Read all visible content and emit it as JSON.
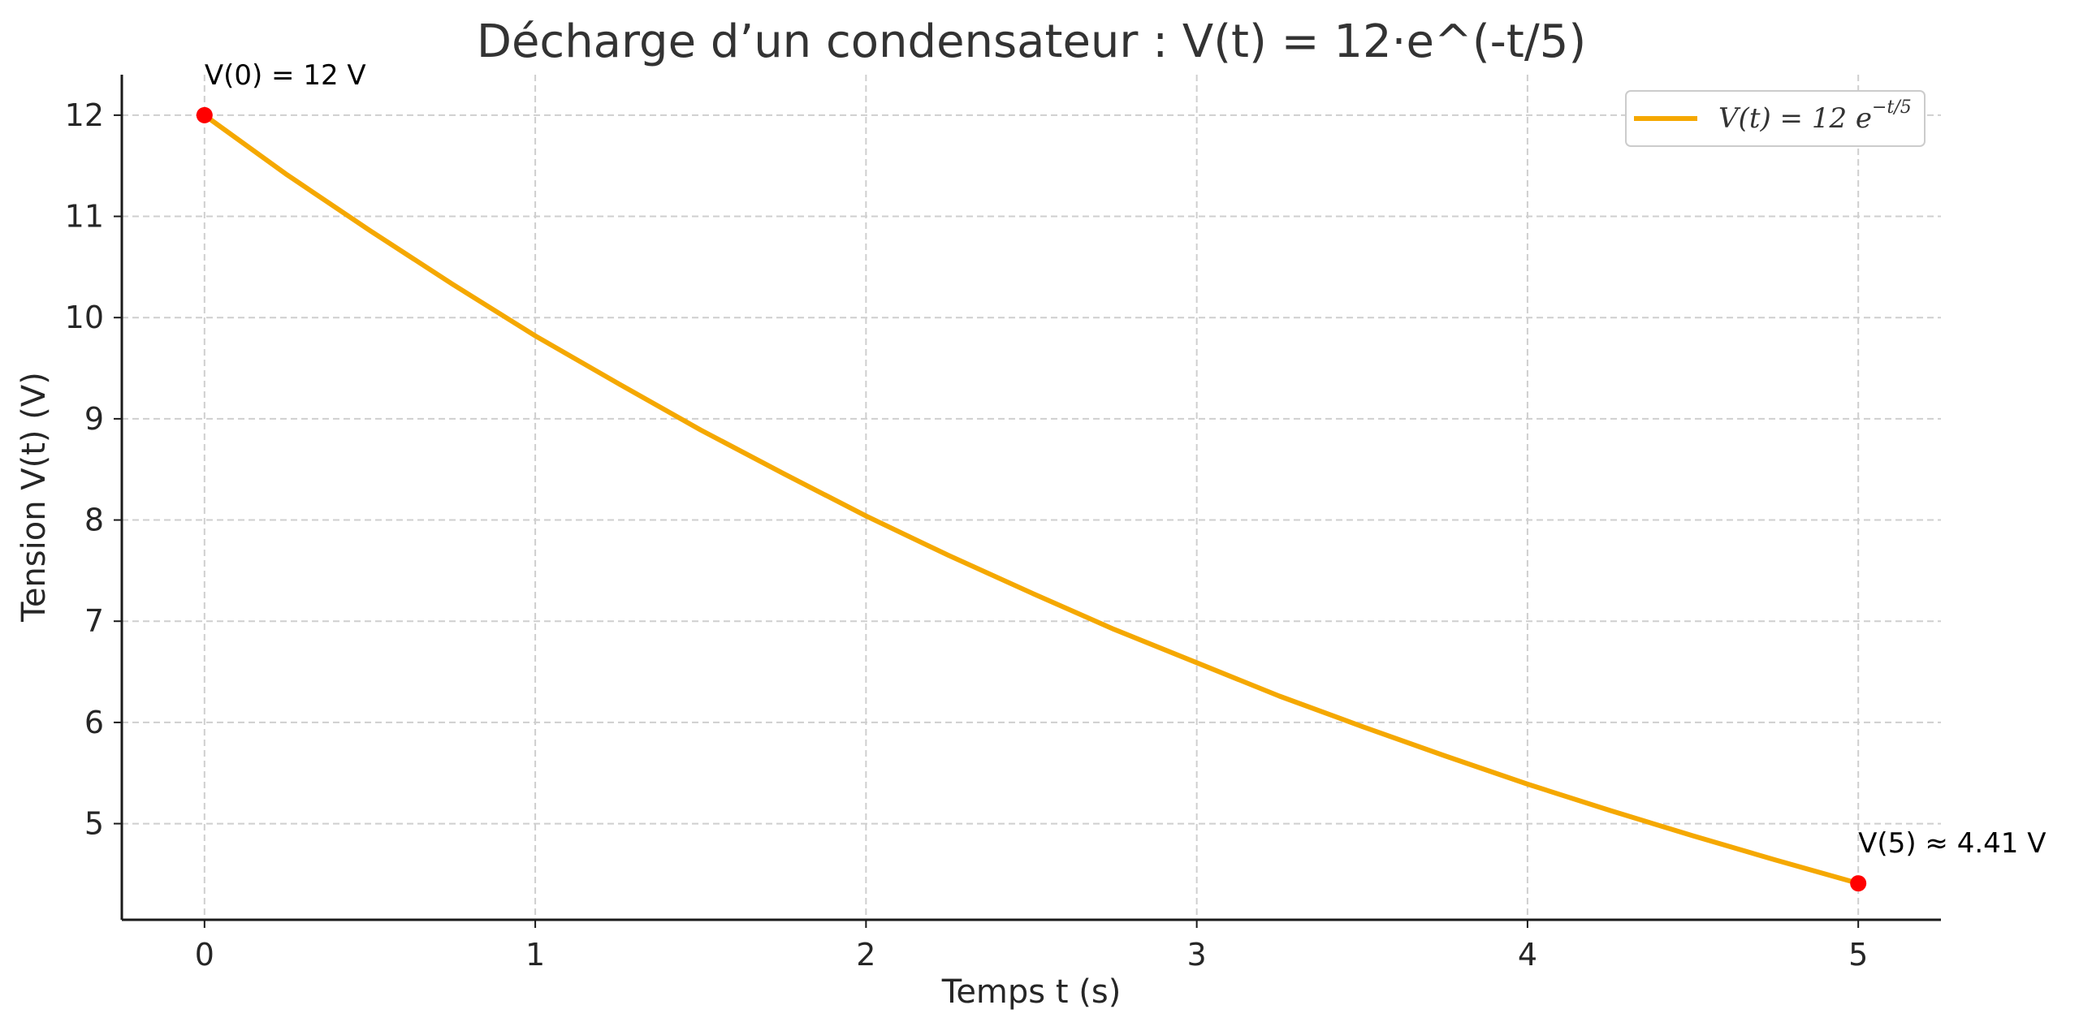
{
  "chart_data": {
    "type": "line",
    "title": "Décharge d’un condensateur : V(t) = 12·e^(-t/5)",
    "xlabel": "Temps t (s)",
    "ylabel": "Tension V(t) (V)",
    "xlim": [
      -0.25,
      5.25
    ],
    "ylim": [
      4.05,
      12.4
    ],
    "x_ticks": [
      0,
      1,
      2,
      3,
      4,
      5
    ],
    "y_ticks": [
      5,
      6,
      7,
      8,
      9,
      10,
      11,
      12
    ],
    "grid": true,
    "legend_position": "top-right",
    "series": [
      {
        "name": "V(t) = 12 e^(−t/5)",
        "color": "#f5a800",
        "x": [
          0,
          0.25,
          0.5,
          0.75,
          1,
          1.25,
          1.5,
          1.75,
          2,
          2.25,
          2.5,
          2.75,
          3,
          3.25,
          3.5,
          3.75,
          4,
          4.25,
          4.5,
          4.75,
          5
        ],
        "y": [
          12.0,
          11.41,
          10.86,
          10.33,
          9.82,
          9.35,
          8.89,
          8.46,
          8.04,
          7.65,
          7.28,
          6.92,
          6.59,
          6.26,
          5.96,
          5.67,
          5.39,
          5.13,
          4.88,
          4.64,
          4.41
        ]
      }
    ],
    "points": [
      {
        "x": 0,
        "y": 12,
        "label": "V(0) = 12 V",
        "color": "#ff0000"
      },
      {
        "x": 5,
        "y": 4.41,
        "label": "V(5) ≈ 4.41 V",
        "color": "#ff0000"
      }
    ],
    "legend": {
      "prefix": "V(t) = 12 e",
      "superscript": "−t/5"
    }
  }
}
